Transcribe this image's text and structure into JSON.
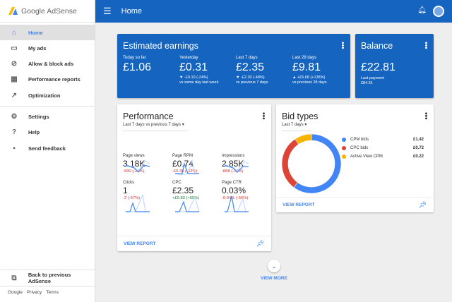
{
  "app": {
    "logo_text": "Google AdSense"
  },
  "topbar": {
    "title": "Home",
    "menu_icon": "hamburger-icon",
    "bell_icon": "bell-icon",
    "avatar_icon": "account-avatar"
  },
  "sidebar": {
    "items": [
      {
        "label": "Home",
        "icon": "home-icon",
        "active": true
      },
      {
        "label": "My ads",
        "icon": "ad-unit-icon"
      },
      {
        "label": "Allow & block ads",
        "icon": "block-icon"
      },
      {
        "label": "Performance reports",
        "icon": "bar-chart-icon"
      },
      {
        "label": "Optimization",
        "icon": "trending-icon"
      },
      {
        "label": "Settings",
        "icon": "gear-icon"
      },
      {
        "label": "Help",
        "icon": "help-icon"
      },
      {
        "label": "Send feedback",
        "icon": "feedback-icon"
      }
    ],
    "back_label": "Back to previous AdSense",
    "footer": [
      "Google",
      "Privacy",
      "Terms"
    ]
  },
  "earnings": {
    "title": "Estimated earnings",
    "columns": [
      {
        "label": "Today so far",
        "value": "£1.06",
        "change": "",
        "compare": ""
      },
      {
        "label": "Yesterday",
        "value": "£0.31",
        "change": "▼ -£0.10 (-24%)",
        "compare": "vs same day last week"
      },
      {
        "label": "Last 7 days",
        "value": "£2.35",
        "change": "▼ -£2.20 (-48%)",
        "compare": "vs previous 7 days"
      },
      {
        "label": "Last 28 days",
        "value": "£9.81",
        "change": "▲ +£5.68 (+138%)",
        "compare": "vs previous 28 days"
      }
    ]
  },
  "balance": {
    "title": "Balance",
    "value": "£22.81",
    "last_payment_label": "Last payment",
    "last_payment": "£84.61"
  },
  "performance": {
    "title": "Performance",
    "range": "Last 7 days vs previous 7 days",
    "metrics": [
      {
        "label": "Page views",
        "value": "3.18K",
        "change": "-990 (-24%)",
        "trend": "negative"
      },
      {
        "label": "Page RPM",
        "value": "£0.74",
        "change": "-£0.35 (-32%)",
        "trend": "negative"
      },
      {
        "label": "Impressions",
        "value": "2.85K",
        "change": "-888 (-24%)",
        "trend": "negative"
      },
      {
        "label": "Clicks",
        "value": "1",
        "change": "-2 (-67%)",
        "trend": "negative"
      },
      {
        "label": "CPC",
        "value": "£2.35",
        "change": "+£0.83 (+55%)",
        "trend": "positive"
      },
      {
        "label": "Page CTR",
        "value": "0.03%",
        "change": "-0.04% (-56%)",
        "trend": "negative"
      }
    ],
    "view_report": "VIEW REPORT"
  },
  "bid_types": {
    "title": "Bid types",
    "range": "Last 7 days",
    "view_report": "VIEW REPORT",
    "items": [
      {
        "label": "CPM bids",
        "value": "£1.42",
        "amount": 1.42,
        "color": "#4285f4"
      },
      {
        "label": "CPC bids",
        "value": "£0.72",
        "amount": 0.72,
        "color": "#db4437"
      },
      {
        "label": "Active View CPM",
        "value": "£0.22",
        "amount": 0.22,
        "color": "#f4b400"
      }
    ]
  },
  "view_more": "VIEW MORE",
  "colors": {
    "brand": "#1565c0",
    "accent": "#4285f4",
    "negative": "#d93025",
    "positive": "#188038"
  }
}
